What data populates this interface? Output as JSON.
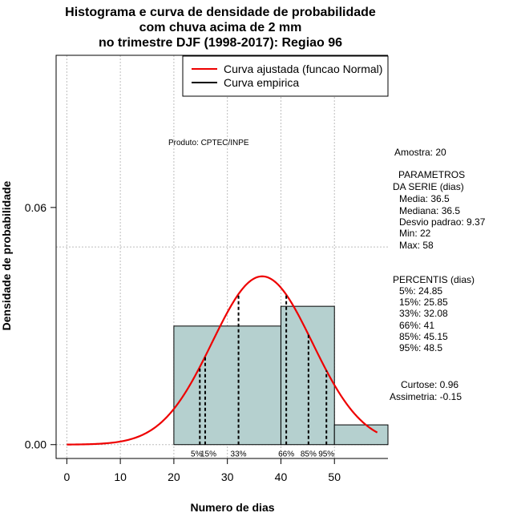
{
  "chart_data": {
    "type": "histogram",
    "title_lines": [
      "Histograma e curva de densidade de probabilidade",
      "com chuva acima de 2 mm",
      "no trimestre DJF (1998-2017): Regiao 96"
    ],
    "xlabel": "Numero de dias",
    "ylabel": "Densidade de probabilidade",
    "xlim": [
      -2,
      60
    ],
    "ylim": [
      -0.0035,
      0.0985
    ],
    "x_ticks": [
      0,
      10,
      20,
      30,
      40,
      50
    ],
    "x_tick_labels": [
      "0",
      "10",
      "20",
      "30",
      "40",
      "50"
    ],
    "y_ticks": [
      0.0,
      0.06
    ],
    "y_tick_labels": [
      "0.00",
      "0.06"
    ],
    "grid_x": [
      0,
      10,
      20,
      30,
      40,
      50
    ],
    "grid_y": [
      0.0,
      0.05
    ],
    "bars": [
      {
        "x0": 20,
        "x1": 40,
        "density": 0.03
      },
      {
        "x0": 40,
        "x1": 50,
        "density": 0.035
      },
      {
        "x0": 50,
        "x1": 60,
        "density": 0.005
      }
    ],
    "bar_color": "#b5d0cf",
    "normal_curve": {
      "mean": 36.5,
      "sd": 9.37,
      "x_from": 0,
      "x_to": 58,
      "color": "#ee0000"
    },
    "percentile_lines": [
      {
        "x": 24.85,
        "label": "5%"
      },
      {
        "x": 25.85,
        "label": "15%"
      },
      {
        "x": 32.08,
        "label": "33%"
      },
      {
        "x": 41,
        "label": "66%"
      },
      {
        "x": 45.15,
        "label": "85%"
      },
      {
        "x": 48.5,
        "label": "95%"
      }
    ],
    "legend": [
      {
        "label": "Curva ajustada (funcao Normal)",
        "color": "#ee0000"
      },
      {
        "label": "Curva empirica",
        "color": "#000000"
      }
    ],
    "legend_position": "top-right",
    "annotation": "Produto: CPTEC/INPE"
  },
  "stats": {
    "amostra": "Amostra: 20",
    "param_header_1": "PARAMETROS",
    "param_header_2": "DA SERIE (dias)",
    "media": "Media: 36.5",
    "mediana": "Mediana: 36.5",
    "desvio": "Desvio padrao: 9.37",
    "min": "Min: 22",
    "max": "Max: 58",
    "perc_header": "PERCENTIS (dias)",
    "p5": "5%: 24.85",
    "p15": "15%: 25.85",
    "p33": "33%: 32.08",
    "p66": "66%: 41",
    "p85": "85%: 45.15",
    "p95": "95%: 48.5",
    "curtose": "Curtose: 0.96",
    "assimetria": "Assimetria: -0.15"
  }
}
